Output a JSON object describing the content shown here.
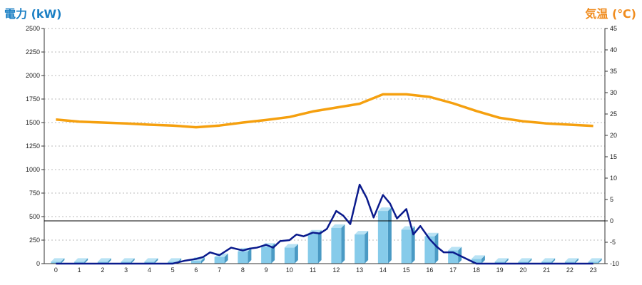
{
  "chart_data": {
    "type": "bar",
    "title_left": "電力 (kW)",
    "title_right": "気温 (℃)",
    "colors": {
      "bar_face": "#86cbea",
      "bar_side": "#4a9ac4",
      "bar_top": "#b8e2f4",
      "power_line": "#0a1a8c",
      "temperature_line": "#f5a00f",
      "grid": "#bbbbbb",
      "axis": "#333333"
    },
    "x": {
      "ticks": [
        "0",
        "1",
        "2",
        "3",
        "4",
        "5",
        "6",
        "7",
        "8",
        "9",
        "10",
        "11",
        "12",
        "13",
        "14",
        "15",
        "16",
        "17",
        "18",
        "19",
        "20",
        "21",
        "22",
        "23"
      ],
      "range": [
        0,
        23
      ]
    },
    "y_left": {
      "range": [
        0,
        2500
      ],
      "ticks": [
        "0",
        "250",
        "500",
        "750",
        "1000",
        "1250",
        "1500",
        "1750",
        "2000",
        "2250",
        "2500"
      ]
    },
    "y_right": {
      "range": [
        -10,
        45
      ],
      "ticks": [
        "-10",
        "-5",
        "0",
        "5",
        "10",
        "15",
        "20",
        "25",
        "30",
        "35",
        "40",
        "45"
      ]
    },
    "bars": {
      "categories": [
        "0",
        "1",
        "2",
        "3",
        "4",
        "5",
        "6",
        "7",
        "8",
        "9",
        "10",
        "11",
        "12",
        "13",
        "14",
        "15",
        "16",
        "17",
        "18",
        "19",
        "20",
        "21",
        "22",
        "23"
      ],
      "values": [
        20,
        20,
        20,
        20,
        20,
        20,
        30,
        70,
        130,
        180,
        170,
        320,
        380,
        310,
        560,
        360,
        290,
        140,
        50,
        20,
        20,
        20,
        20,
        20
      ]
    },
    "power_line": {
      "x": [
        0,
        1,
        2,
        3,
        4,
        5,
        5.5,
        6,
        6.3,
        6.6,
        7,
        7.5,
        8,
        8.3,
        8.6,
        9,
        9.3,
        9.6,
        10,
        10.3,
        10.6,
        11,
        11.3,
        11.6,
        12,
        12.3,
        12.6,
        13,
        13.3,
        13.6,
        14,
        14.3,
        14.6,
        15,
        15.3,
        15.6,
        16,
        16.3,
        16.6,
        17,
        17.5,
        18,
        19,
        20,
        21,
        22,
        23
      ],
      "values": [
        0,
        0,
        0,
        0,
        0,
        0,
        30,
        50,
        70,
        120,
        90,
        170,
        140,
        160,
        170,
        200,
        170,
        240,
        250,
        310,
        290,
        330,
        320,
        370,
        560,
        510,
        420,
        840,
        700,
        490,
        730,
        640,
        480,
        580,
        310,
        400,
        260,
        180,
        120,
        120,
        60,
        0,
        0,
        0,
        0,
        0,
        0
      ]
    },
    "temperature_line": {
      "x": [
        0,
        1,
        2,
        3,
        4,
        5,
        6,
        7,
        8,
        9,
        10,
        11,
        12,
        13,
        14,
        15,
        16,
        17,
        18,
        19,
        20,
        21,
        22,
        23
      ],
      "values": [
        23.7,
        23.2,
        23.0,
        22.8,
        22.5,
        22.3,
        21.9,
        22.3,
        23.0,
        23.6,
        24.3,
        25.6,
        26.5,
        27.4,
        29.6,
        29.6,
        29.0,
        27.5,
        25.7,
        24.1,
        23.3,
        22.8,
        22.5,
        22.2
      ]
    },
    "zero_line_temperature": 0,
    "grid": true
  }
}
